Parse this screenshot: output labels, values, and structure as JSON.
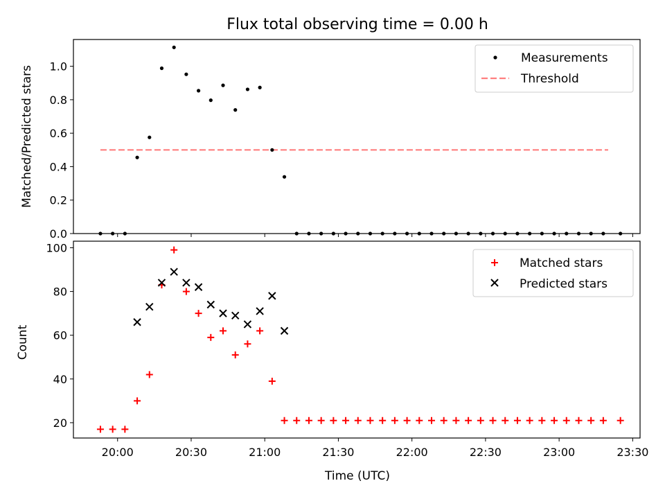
{
  "chart_data": [
    {
      "type": "scatter",
      "title": "Flux total observing time = 0.00 h",
      "xlabel": "",
      "ylabel": "Matched/Predicted stars",
      "ylim": [
        0,
        1.16
      ],
      "yticks": [
        "0.0",
        "0.2",
        "0.4",
        "0.6",
        "0.8",
        "1.0"
      ],
      "legend_position": "top-right",
      "series": [
        {
          "name": "Measurements",
          "marker": "dot",
          "color": "#000000",
          "points": [
            {
              "t": "19:53",
              "v": 0.0
            },
            {
              "t": "19:58",
              "v": 0.0
            },
            {
              "t": "20:03",
              "v": 0.0
            },
            {
              "t": "20:08",
              "v": 0.455
            },
            {
              "t": "20:13",
              "v": 0.575
            },
            {
              "t": "20:18",
              "v": 0.988
            },
            {
              "t": "20:23",
              "v": 1.113
            },
            {
              "t": "20:28",
              "v": 0.952
            },
            {
              "t": "20:33",
              "v": 0.854
            },
            {
              "t": "20:38",
              "v": 0.797
            },
            {
              "t": "20:43",
              "v": 0.886
            },
            {
              "t": "20:48",
              "v": 0.739
            },
            {
              "t": "20:53",
              "v": 0.862
            },
            {
              "t": "20:58",
              "v": 0.873
            },
            {
              "t": "21:03",
              "v": 0.5
            },
            {
              "t": "21:08",
              "v": 0.339
            },
            {
              "t": "21:13",
              "v": 0.0
            },
            {
              "t": "21:18",
              "v": 0.0
            },
            {
              "t": "21:23",
              "v": 0.0
            },
            {
              "t": "21:28",
              "v": 0.0
            },
            {
              "t": "21:33",
              "v": 0.0
            },
            {
              "t": "21:38",
              "v": 0.0
            },
            {
              "t": "21:43",
              "v": 0.0
            },
            {
              "t": "21:48",
              "v": 0.0
            },
            {
              "t": "21:53",
              "v": 0.0
            },
            {
              "t": "21:58",
              "v": 0.0
            },
            {
              "t": "22:03",
              "v": 0.0
            },
            {
              "t": "22:08",
              "v": 0.0
            },
            {
              "t": "22:13",
              "v": 0.0
            },
            {
              "t": "22:18",
              "v": 0.0
            },
            {
              "t": "22:23",
              "v": 0.0
            },
            {
              "t": "22:28",
              "v": 0.0
            },
            {
              "t": "22:33",
              "v": 0.0
            },
            {
              "t": "22:38",
              "v": 0.0
            },
            {
              "t": "22:43",
              "v": 0.0
            },
            {
              "t": "22:48",
              "v": 0.0
            },
            {
              "t": "22:53",
              "v": 0.0
            },
            {
              "t": "22:58",
              "v": 0.0
            },
            {
              "t": "23:03",
              "v": 0.0
            },
            {
              "t": "23:08",
              "v": 0.0
            },
            {
              "t": "23:13",
              "v": 0.0
            },
            {
              "t": "23:18",
              "v": 0.0
            },
            {
              "t": "23:25",
              "v": 0.0
            }
          ]
        },
        {
          "name": "Threshold",
          "marker": "dashed-line",
          "color": "#ff7f7f",
          "x": [
            "19:53",
            "23:20"
          ],
          "y": [
            0.5,
            0.5
          ]
        }
      ]
    },
    {
      "type": "scatter",
      "title": "",
      "xlabel": "Time (UTC)",
      "ylabel": "Count",
      "ylim": [
        13,
        103
      ],
      "yticks": [
        "20",
        "40",
        "60",
        "80",
        "100"
      ],
      "xlim": [
        "19:42",
        "23:33"
      ],
      "xticks": [
        "20:00",
        "20:30",
        "21:00",
        "21:30",
        "22:00",
        "22:30",
        "23:00",
        "23:30"
      ],
      "legend_position": "top-right",
      "series": [
        {
          "name": "Matched stars",
          "marker": "plus",
          "color": "#ff0000",
          "points": [
            {
              "t": "19:53",
              "v": 17
            },
            {
              "t": "19:58",
              "v": 17
            },
            {
              "t": "20:03",
              "v": 17
            },
            {
              "t": "20:08",
              "v": 30
            },
            {
              "t": "20:13",
              "v": 42
            },
            {
              "t": "20:18",
              "v": 83
            },
            {
              "t": "20:23",
              "v": 99
            },
            {
              "t": "20:28",
              "v": 80
            },
            {
              "t": "20:33",
              "v": 70
            },
            {
              "t": "20:38",
              "v": 59
            },
            {
              "t": "20:43",
              "v": 62
            },
            {
              "t": "20:48",
              "v": 51
            },
            {
              "t": "20:53",
              "v": 56
            },
            {
              "t": "20:58",
              "v": 62
            },
            {
              "t": "21:03",
              "v": 39
            },
            {
              "t": "21:08",
              "v": 21
            },
            {
              "t": "21:13",
              "v": 21
            },
            {
              "t": "21:18",
              "v": 21
            },
            {
              "t": "21:23",
              "v": 21
            },
            {
              "t": "21:28",
              "v": 21
            },
            {
              "t": "21:33",
              "v": 21
            },
            {
              "t": "21:38",
              "v": 21
            },
            {
              "t": "21:43",
              "v": 21
            },
            {
              "t": "21:48",
              "v": 21
            },
            {
              "t": "21:53",
              "v": 21
            },
            {
              "t": "21:58",
              "v": 21
            },
            {
              "t": "22:03",
              "v": 21
            },
            {
              "t": "22:08",
              "v": 21
            },
            {
              "t": "22:13",
              "v": 21
            },
            {
              "t": "22:18",
              "v": 21
            },
            {
              "t": "22:23",
              "v": 21
            },
            {
              "t": "22:28",
              "v": 21
            },
            {
              "t": "22:33",
              "v": 21
            },
            {
              "t": "22:38",
              "v": 21
            },
            {
              "t": "22:43",
              "v": 21
            },
            {
              "t": "22:48",
              "v": 21
            },
            {
              "t": "22:53",
              "v": 21
            },
            {
              "t": "22:58",
              "v": 21
            },
            {
              "t": "23:03",
              "v": 21
            },
            {
              "t": "23:08",
              "v": 21
            },
            {
              "t": "23:13",
              "v": 21
            },
            {
              "t": "23:18",
              "v": 21
            },
            {
              "t": "23:25",
              "v": 21
            }
          ]
        },
        {
          "name": "Predicted stars",
          "marker": "x",
          "color": "#000000",
          "points": [
            {
              "t": "20:08",
              "v": 66
            },
            {
              "t": "20:13",
              "v": 73
            },
            {
              "t": "20:18",
              "v": 84
            },
            {
              "t": "20:23",
              "v": 89
            },
            {
              "t": "20:28",
              "v": 84
            },
            {
              "t": "20:33",
              "v": 82
            },
            {
              "t": "20:38",
              "v": 74
            },
            {
              "t": "20:43",
              "v": 70
            },
            {
              "t": "20:48",
              "v": 69
            },
            {
              "t": "20:53",
              "v": 65
            },
            {
              "t": "20:58",
              "v": 71
            },
            {
              "t": "21:03",
              "v": 78
            },
            {
              "t": "21:08",
              "v": 62
            }
          ]
        }
      ]
    }
  ]
}
